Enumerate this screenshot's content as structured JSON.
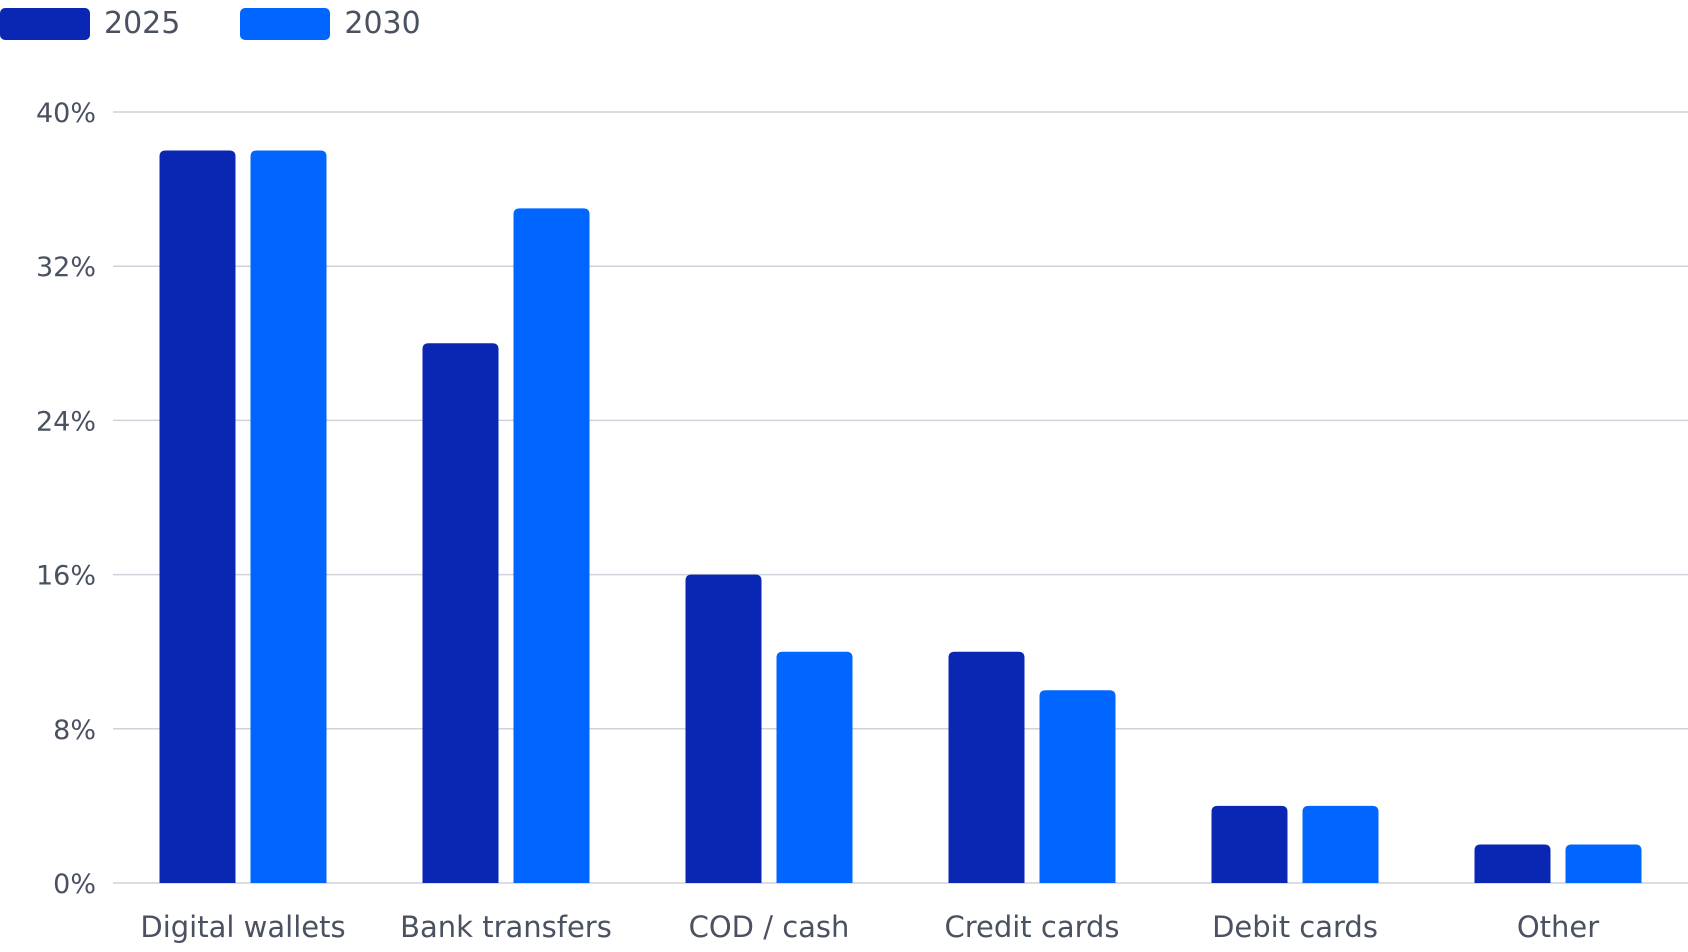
{
  "chart_data": {
    "type": "bar",
    "categories": [
      "Digital wallets",
      "Bank transfers",
      "COD / cash",
      "Credit cards",
      "Debit cards",
      "Other"
    ],
    "series": [
      {
        "name": "2025",
        "color": "#0a27b3",
        "values": [
          38,
          28,
          16,
          12,
          4,
          2
        ]
      },
      {
        "name": "2030",
        "color": "#0066ff",
        "values": [
          38,
          35,
          12,
          10,
          4,
          2
        ]
      }
    ],
    "ylim": [
      0,
      40
    ],
    "yticks": [
      0,
      8,
      16,
      24,
      32,
      40
    ],
    "ytick_labels": [
      "0%",
      "8%",
      "16%",
      "24%",
      "32%",
      "40%"
    ],
    "grid": true,
    "legend_position": "top-left",
    "gridline_color": "#cfd2da"
  }
}
